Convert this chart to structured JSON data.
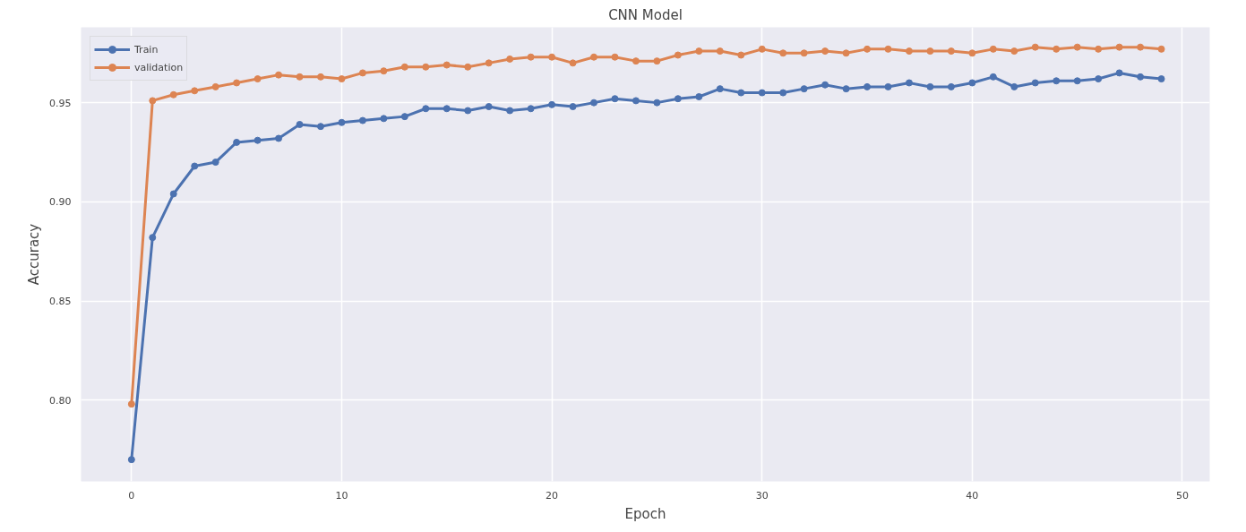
{
  "chart_data": {
    "type": "line",
    "title": "CNN Model",
    "xlabel": "Epoch",
    "ylabel": "Accuracy",
    "x": [
      0,
      1,
      2,
      3,
      4,
      5,
      6,
      7,
      8,
      9,
      10,
      11,
      12,
      13,
      14,
      15,
      16,
      17,
      18,
      19,
      20,
      21,
      22,
      23,
      24,
      25,
      26,
      27,
      28,
      29,
      30,
      31,
      32,
      33,
      34,
      35,
      36,
      37,
      38,
      39,
      40,
      41,
      42,
      43,
      44,
      45,
      46,
      47,
      48,
      49
    ],
    "series": [
      {
        "name": "Train",
        "color": "#4c72b0",
        "values": [
          0.77,
          0.882,
          0.904,
          0.918,
          0.92,
          0.93,
          0.931,
          0.932,
          0.939,
          0.938,
          0.94,
          0.941,
          0.942,
          0.943,
          0.947,
          0.947,
          0.946,
          0.948,
          0.946,
          0.947,
          0.949,
          0.948,
          0.95,
          0.952,
          0.951,
          0.95,
          0.952,
          0.953,
          0.957,
          0.955,
          0.955,
          0.955,
          0.957,
          0.959,
          0.957,
          0.958,
          0.958,
          0.96,
          0.958,
          0.958,
          0.96,
          0.963,
          0.958,
          0.96,
          0.961,
          0.961,
          0.962,
          0.965,
          0.963,
          0.962
        ]
      },
      {
        "name": "validation",
        "color": "#dd8452",
        "values": [
          0.798,
          0.951,
          0.954,
          0.956,
          0.958,
          0.96,
          0.962,
          0.964,
          0.963,
          0.963,
          0.962,
          0.965,
          0.966,
          0.968,
          0.968,
          0.969,
          0.968,
          0.97,
          0.972,
          0.973,
          0.973,
          0.97,
          0.973,
          0.973,
          0.971,
          0.971,
          0.974,
          0.976,
          0.976,
          0.974,
          0.977,
          0.975,
          0.975,
          0.976,
          0.975,
          0.977,
          0.977,
          0.976,
          0.976,
          0.976,
          0.975,
          0.977,
          0.976,
          0.978,
          0.977,
          0.978,
          0.977,
          0.978,
          0.978,
          0.977
        ]
      }
    ],
    "xlim": [
      -2.4,
      51.3
    ],
    "ylim": [
      0.759,
      0.988
    ],
    "xticks": [
      0,
      10,
      20,
      30,
      40,
      50
    ],
    "yticks": [
      {
        "value": 0.8,
        "label": "0.80"
      },
      {
        "value": 0.85,
        "label": "0.85"
      },
      {
        "value": 0.9,
        "label": "0.90"
      },
      {
        "value": 0.95,
        "label": "0.95"
      }
    ],
    "grid": true,
    "legend": "top left",
    "marker": "circle",
    "line_style": "solid"
  }
}
